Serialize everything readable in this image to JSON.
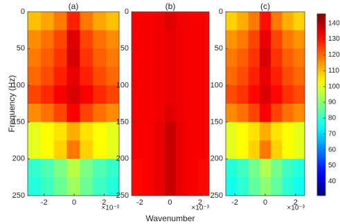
{
  "chart_data": [
    {
      "type": "heatmap",
      "title": "(a)",
      "ylabel": "Frequency (Hz)",
      "x_exponent_label": "×10⁻³",
      "xlim": [
        -3.1,
        3.0
      ],
      "xticks": [
        -2,
        0,
        2
      ],
      "ylim": [
        0,
        250
      ],
      "yticks": [
        0,
        50,
        100,
        150,
        200,
        250
      ],
      "values": [
        [
          110,
          113,
          118,
          128,
          118,
          113,
          110
        ],
        [
          116,
          119,
          124,
          135,
          124,
          119,
          116
        ],
        [
          118,
          121,
          126,
          136,
          126,
          121,
          118
        ],
        [
          120,
          123,
          128,
          134,
          128,
          123,
          120
        ],
        [
          124,
          127,
          132,
          136,
          132,
          127,
          124
        ],
        [
          116,
          119,
          124,
          132,
          124,
          119,
          116
        ],
        [
          100,
          103,
          106,
          112,
          106,
          103,
          100
        ],
        [
          100,
          103,
          108,
          118,
          108,
          103,
          100
        ],
        [
          80,
          83,
          88,
          95,
          88,
          83,
          80
        ],
        [
          78,
          81,
          86,
          92,
          86,
          81,
          78
        ]
      ]
    },
    {
      "type": "heatmap",
      "title": "(b)",
      "xlabel": "Wavenumber",
      "x_exponent_label": "×10⁻³",
      "xlim": [
        -2.55,
        2.6
      ],
      "xticks": [
        -2,
        0,
        2
      ],
      "ylim": [
        0,
        250
      ],
      "yticks": [
        0,
        50,
        100,
        150,
        200,
        250
      ],
      "values": [
        [
          132,
          132,
          133,
          135,
          133,
          132,
          132
        ],
        [
          132,
          132,
          133,
          134,
          133,
          132,
          132
        ],
        [
          132,
          132,
          133,
          134,
          133,
          132,
          132
        ],
        [
          132,
          132,
          133,
          134,
          133,
          132,
          132
        ],
        [
          132,
          132,
          133,
          134,
          133,
          132,
          132
        ],
        [
          132,
          132,
          133,
          135,
          133,
          132,
          132
        ],
        [
          132,
          132,
          134,
          138,
          134,
          132,
          132
        ],
        [
          132,
          132,
          134,
          138,
          134,
          132,
          132
        ],
        [
          131,
          132,
          134,
          138,
          134,
          132,
          131
        ],
        [
          131,
          132,
          134,
          138,
          134,
          132,
          131
        ]
      ]
    },
    {
      "type": "heatmap",
      "title": "(c)",
      "x_exponent_label": "×10⁻³",
      "xlim": [
        -2.6,
        2.6
      ],
      "xticks": [
        -2,
        0,
        2
      ],
      "ylim": [
        0,
        250
      ],
      "yticks": [
        0,
        50,
        100,
        150,
        200,
        250
      ],
      "values": [
        [
          108,
          112,
          118,
          130,
          118,
          112,
          108
        ],
        [
          115,
          118,
          124,
          134,
          124,
          118,
          115
        ],
        [
          118,
          121,
          126,
          136,
          126,
          121,
          118
        ],
        [
          120,
          123,
          128,
          134,
          128,
          123,
          120
        ],
        [
          123,
          126,
          131,
          136,
          131,
          126,
          123
        ],
        [
          116,
          119,
          124,
          132,
          124,
          119,
          116
        ],
        [
          100,
          103,
          106,
          112,
          106,
          103,
          100
        ],
        [
          100,
          103,
          108,
          118,
          108,
          103,
          100
        ],
        [
          78,
          81,
          87,
          94,
          87,
          81,
          78
        ],
        [
          76,
          79,
          85,
          90,
          85,
          79,
          76
        ]
      ]
    }
  ],
  "colorbar": {
    "clim": [
      31,
      146
    ],
    "ticks": [
      40,
      50,
      60,
      70,
      80,
      90,
      100,
      110,
      120,
      130,
      140
    ]
  }
}
